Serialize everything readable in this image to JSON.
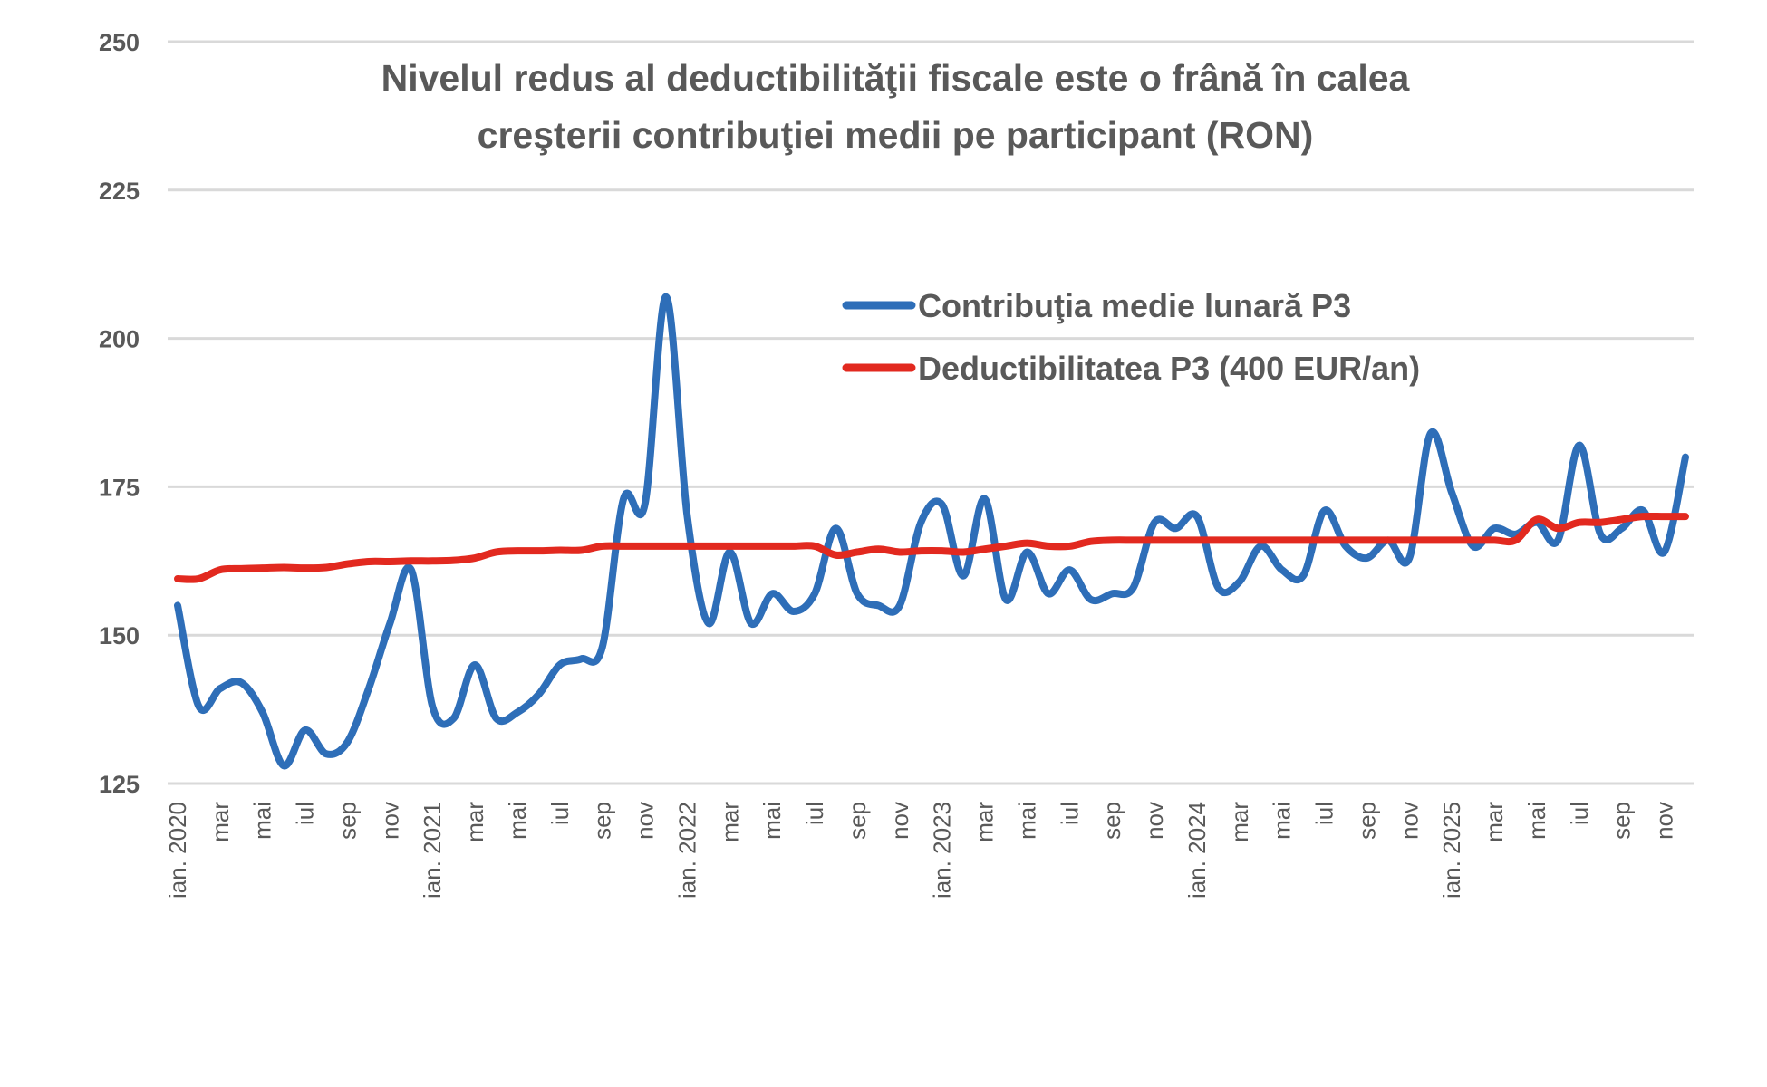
{
  "chart_data": {
    "type": "line",
    "title": "Nivelul redus al deductibilităţii fiscale este o frână în calea creşterii contribuţiei medii pe participant (RON)",
    "title_lines": [
      "Nivelul redus al deductibilităţii fiscale este o frână în calea",
      "creşterii contribuţiei medii pe participant (RON)"
    ],
    "xlabel": "",
    "ylabel": "",
    "ylim": [
      125,
      250
    ],
    "yticks": [
      125,
      150,
      175,
      200,
      225,
      250
    ],
    "grid": true,
    "legend_position": "center-right",
    "x": [
      "ian. 2020",
      "feb",
      "mar",
      "apr",
      "mai",
      "iun",
      "iul",
      "aug",
      "sep",
      "oct",
      "nov",
      "dec",
      "ian. 2021",
      "feb",
      "mar",
      "apr",
      "mai",
      "iun",
      "iul",
      "aug",
      "sep",
      "oct",
      "nov",
      "dec",
      "ian. 2022",
      "feb",
      "mar",
      "apr",
      "mai",
      "iun",
      "iul",
      "aug",
      "sep",
      "oct",
      "nov",
      "dec",
      "ian. 2023",
      "feb",
      "mar",
      "apr",
      "mai",
      "iun",
      "iul",
      "aug",
      "sep",
      "oct",
      "nov",
      "dec",
      "ian. 2024",
      "feb",
      "mar",
      "apr",
      "mai",
      "iun",
      "iul",
      "aug",
      "sep",
      "oct",
      "nov",
      "dec",
      "ian. 2025",
      "feb",
      "mar",
      "apr",
      "mai",
      "iun",
      "iul",
      "aug",
      "sep",
      "oct",
      "nov",
      "dec"
    ],
    "x_tick_labels_shown_every": 2,
    "series": [
      {
        "name": "Contribuţia medie lunară P3",
        "color": "#2E6EB8",
        "values": [
          155,
          138,
          141,
          142,
          137,
          128,
          134,
          130,
          132,
          141,
          152,
          161,
          138,
          136,
          145,
          136,
          137,
          140,
          145,
          146,
          148,
          173,
          172,
          207,
          170,
          152,
          164,
          152,
          157,
          154,
          157,
          168,
          157,
          155,
          155,
          169,
          172,
          160,
          173,
          156,
          164,
          157,
          161,
          156,
          157,
          158,
          169,
          168,
          170,
          158,
          159,
          165,
          161,
          160,
          171,
          165,
          163,
          166,
          163,
          184,
          174,
          165,
          168,
          167,
          169,
          166,
          182,
          167,
          168,
          171,
          164,
          180
        ]
      },
      {
        "name": "Deductibilitatea P3 (400 EUR/an)",
        "color": "#E2291F",
        "values": [
          159.5,
          159.5,
          161,
          161.2,
          161.3,
          161.4,
          161.3,
          161.4,
          162,
          162.4,
          162.4,
          162.5,
          162.5,
          162.6,
          163,
          164,
          164.2,
          164.2,
          164.3,
          164.3,
          165,
          165,
          165,
          165,
          165,
          165,
          165,
          165,
          165,
          165,
          165,
          163.5,
          164,
          164.5,
          164,
          164.2,
          164.2,
          164,
          164.5,
          165,
          165.5,
          165,
          165,
          165.8,
          166,
          166,
          166,
          166,
          166,
          166,
          166,
          166,
          166,
          166,
          166,
          166,
          166,
          166,
          166,
          166,
          166,
          166,
          166,
          166,
          169.5,
          168,
          169,
          169,
          169.5,
          170,
          170,
          170
        ]
      }
    ]
  }
}
